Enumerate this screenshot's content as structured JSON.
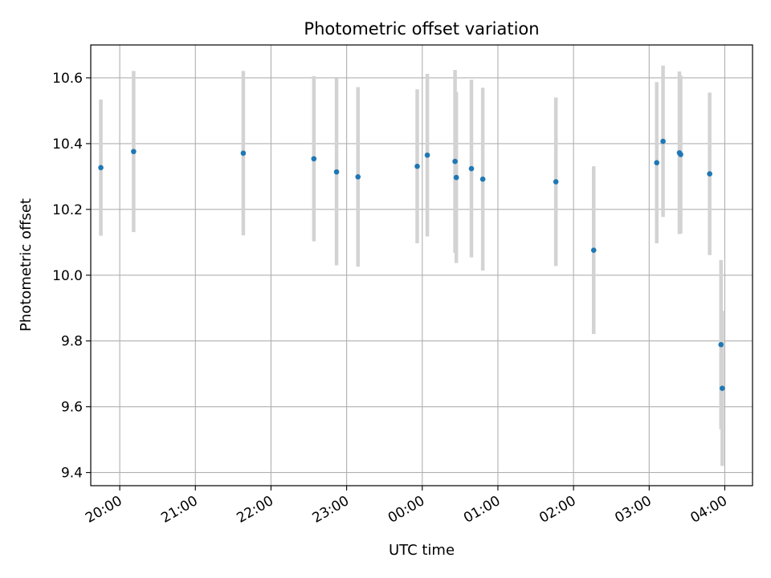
{
  "chart_data": {
    "type": "scatter",
    "title": "Photometric offset variation",
    "xlabel": "UTC time",
    "ylabel": "Photometric offset",
    "x_unit": "UTC time of night (20:00 through 04:00)",
    "xlim": [
      "19:37",
      "04:22"
    ],
    "ylim": [
      9.36,
      10.7
    ],
    "x_ticks": [
      "20:00",
      "21:00",
      "22:00",
      "23:00",
      "00:00",
      "01:00",
      "02:00",
      "03:00",
      "04:00"
    ],
    "y_ticks": [
      9.4,
      9.6,
      9.8,
      10.0,
      10.2,
      10.4,
      10.6
    ],
    "y_tick_labels": [
      "9.4",
      "9.6",
      "9.8",
      "10.0",
      "10.2",
      "10.4",
      "10.6"
    ],
    "grid": true,
    "colors": {
      "points": "#1f77b4",
      "errorbars": "#d3d3d3",
      "grid": "#b0b0b0"
    },
    "points": [
      {
        "x": "19:45",
        "y": 10.327,
        "err": 0.207
      },
      {
        "x": "20:11",
        "y": 10.376,
        "err": 0.245
      },
      {
        "x": "21:38",
        "y": 10.371,
        "err": 0.25
      },
      {
        "x": "22:34",
        "y": 10.354,
        "err": 0.251
      },
      {
        "x": "22:52",
        "y": 10.314,
        "err": 0.284
      },
      {
        "x": "23:09",
        "y": 10.299,
        "err": 0.273
      },
      {
        "x": "23:56",
        "y": 10.331,
        "err": 0.234
      },
      {
        "x": "00:04",
        "y": 10.365,
        "err": 0.247
      },
      {
        "x": "00:26",
        "y": 10.346,
        "err": 0.278
      },
      {
        "x": "00:27",
        "y": 10.297,
        "err": 0.26
      },
      {
        "x": "00:39",
        "y": 10.324,
        "err": 0.27
      },
      {
        "x": "00:48",
        "y": 10.292,
        "err": 0.278
      },
      {
        "x": "01:46",
        "y": 10.284,
        "err": 0.256
      },
      {
        "x": "02:16",
        "y": 10.076,
        "err": 0.255
      },
      {
        "x": "03:06",
        "y": 10.342,
        "err": 0.245
      },
      {
        "x": "03:11",
        "y": 10.407,
        "err": 0.23
      },
      {
        "x": "03:24",
        "y": 10.372,
        "err": 0.247
      },
      {
        "x": "03:25",
        "y": 10.367,
        "err": 0.24
      },
      {
        "x": "03:48",
        "y": 10.308,
        "err": 0.247
      },
      {
        "x": "03:57",
        "y": 9.789,
        "err": 0.257
      },
      {
        "x": "03:58",
        "y": 9.656,
        "err": 0.236
      }
    ]
  }
}
